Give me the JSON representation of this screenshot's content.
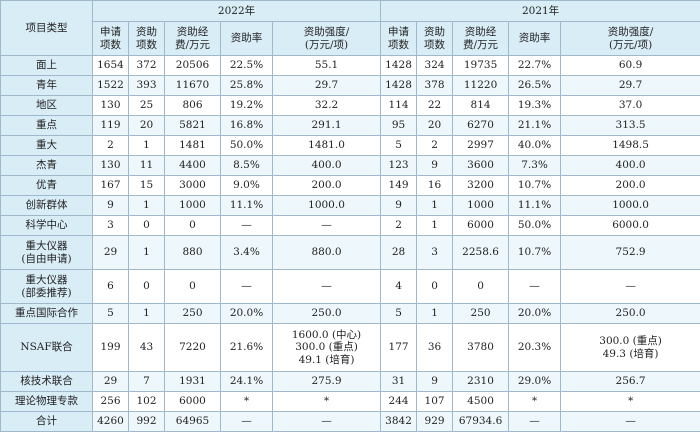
{
  "header": {
    "type_label": "项目类型",
    "years": [
      "2022年",
      "2021年"
    ],
    "columns": [
      "申请\n项数",
      "资助\n项数",
      "资助经\n费/万元",
      "资助率",
      "资助强度/\n(万元/项)"
    ]
  },
  "rows": [
    {
      "type": "面上",
      "y2022": [
        "1654",
        "372",
        "20506",
        "22.5%",
        "55.1"
      ],
      "y2021": [
        "1428",
        "324",
        "19735",
        "22.7%",
        "60.9"
      ]
    },
    {
      "type": "青年",
      "y2022": [
        "1522",
        "393",
        "11670",
        "25.8%",
        "29.7"
      ],
      "y2021": [
        "1428",
        "378",
        "11220",
        "26.5%",
        "29.7"
      ]
    },
    {
      "type": "地区",
      "y2022": [
        "130",
        "25",
        "806",
        "19.2%",
        "32.2"
      ],
      "y2021": [
        "114",
        "22",
        "814",
        "19.3%",
        "37.0"
      ]
    },
    {
      "type": "重点",
      "y2022": [
        "119",
        "20",
        "5821",
        "16.8%",
        "291.1"
      ],
      "y2021": [
        "95",
        "20",
        "6270",
        "21.1%",
        "313.5"
      ]
    },
    {
      "type": "重大",
      "y2022": [
        "2",
        "1",
        "1481",
        "50.0%",
        "1481.0"
      ],
      "y2021": [
        "5",
        "2",
        "2997",
        "40.0%",
        "1498.5"
      ]
    },
    {
      "type": "杰青",
      "y2022": [
        "130",
        "11",
        "4400",
        "8.5%",
        "400.0"
      ],
      "y2021": [
        "123",
        "9",
        "3600",
        "7.3%",
        "400.0"
      ]
    },
    {
      "type": "优青",
      "y2022": [
        "167",
        "15",
        "3000",
        "9.0%",
        "200.0"
      ],
      "y2021": [
        "149",
        "16",
        "3200",
        "10.7%",
        "200.0"
      ]
    },
    {
      "type": "创新群体",
      "y2022": [
        "9",
        "1",
        "1000",
        "11.1%",
        "1000.0"
      ],
      "y2021": [
        "9",
        "1",
        "1000",
        "11.1%",
        "1000.0"
      ]
    },
    {
      "type": "科学中心",
      "y2022": [
        "3",
        "0",
        "0",
        "—",
        "—"
      ],
      "y2021": [
        "2",
        "1",
        "6000",
        "50.0%",
        "6000.0"
      ]
    },
    {
      "type": "重大仪器\n(自由申请)",
      "y2022": [
        "29",
        "1",
        "880",
        "3.4%",
        "880.0"
      ],
      "y2021": [
        "28",
        "3",
        "2258.6",
        "10.7%",
        "752.9"
      ]
    },
    {
      "type": "重大仪器\n(部委推荐)",
      "y2022": [
        "6",
        "0",
        "0",
        "—",
        "—"
      ],
      "y2021": [
        "4",
        "0",
        "0",
        "—",
        "—"
      ]
    },
    {
      "type": "重点国际合作",
      "y2022": [
        "5",
        "1",
        "250",
        "20.0%",
        "250.0"
      ],
      "y2021": [
        "5",
        "1",
        "250",
        "20.0%",
        "250.0"
      ]
    },
    {
      "type": "NSAF联合",
      "y2022": [
        "199",
        "43",
        "7220",
        "21.6%",
        "1600.0 (中心)\n300.0 (重点)\n49.1 (培育)"
      ],
      "y2021": [
        "177",
        "36",
        "3780",
        "20.3%",
        "300.0 (重点)\n49.3 (培育)"
      ]
    },
    {
      "type": "核技术联合",
      "y2022": [
        "29",
        "7",
        "1931",
        "24.1%",
        "275.9"
      ],
      "y2021": [
        "31",
        "9",
        "2310",
        "29.0%",
        "256.7"
      ]
    },
    {
      "type": "理论物理专款",
      "y2022": [
        "256",
        "102",
        "6000",
        "*",
        "*"
      ],
      "y2021": [
        "244",
        "107",
        "4500",
        "*",
        "*"
      ]
    },
    {
      "type": "合计",
      "y2022": [
        "4260",
        "992",
        "64965",
        "—",
        "—"
      ],
      "y2021": [
        "3842",
        "929",
        "67934.6",
        "—",
        "—"
      ]
    }
  ]
}
